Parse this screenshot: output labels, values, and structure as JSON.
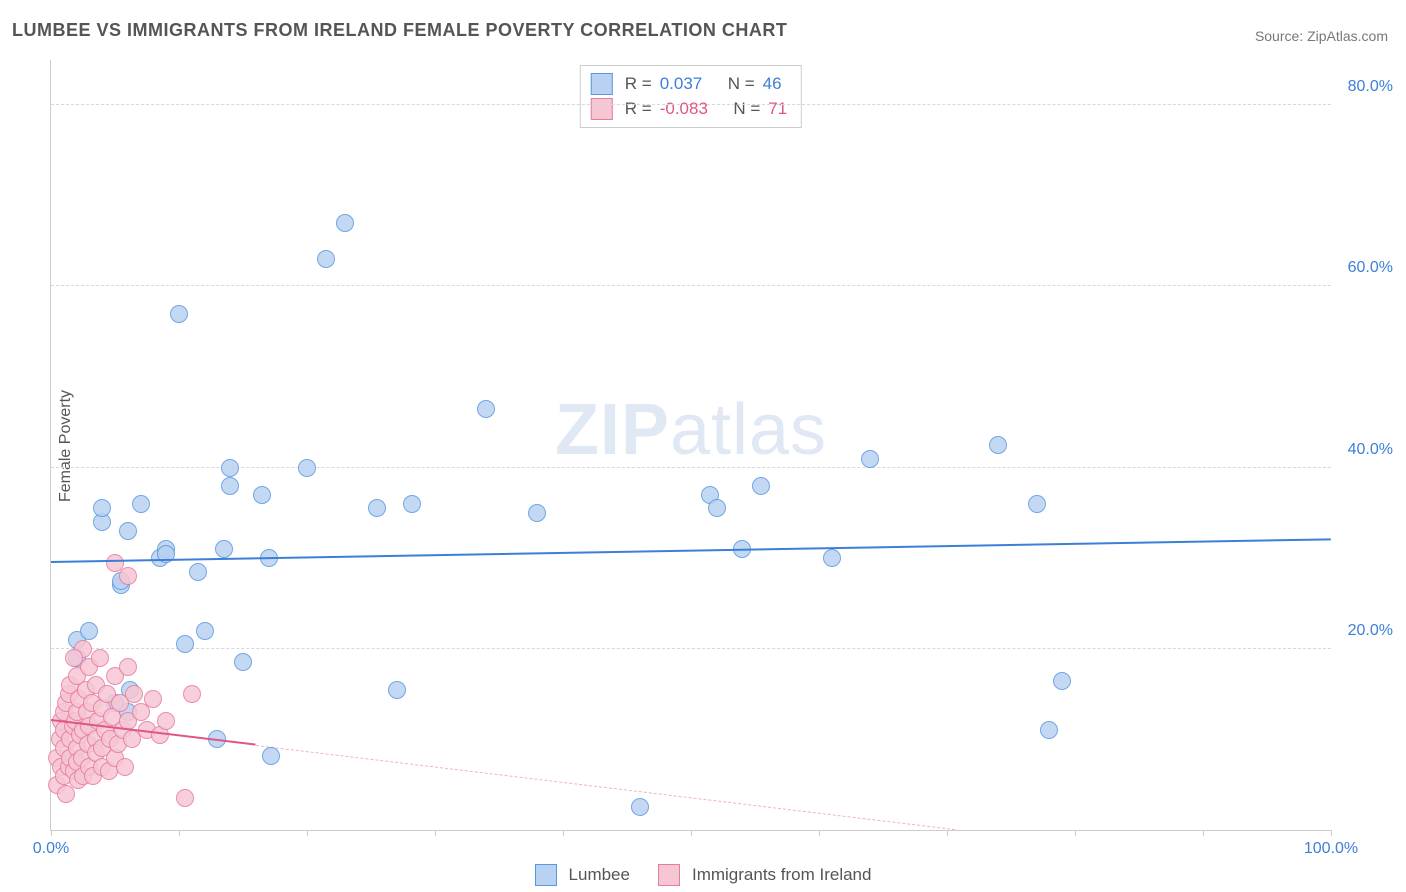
{
  "title": "LUMBEE VS IMMIGRANTS FROM IRELAND FEMALE POVERTY CORRELATION CHART",
  "source": "Source: ZipAtlas.com",
  "ylabel": "Female Poverty",
  "watermark_bold": "ZIP",
  "watermark_light": "atlas",
  "chart": {
    "type": "scatter",
    "xlim": [
      0,
      100
    ],
    "ylim": [
      0,
      85
    ],
    "xticks": [
      0,
      10,
      20,
      30,
      40,
      50,
      60,
      70,
      80,
      90,
      100
    ],
    "xtick_labels_shown": {
      "0": "0.0%",
      "100": "100.0%"
    },
    "yticks": [
      20,
      40,
      60,
      80
    ],
    "ytick_labels": {
      "20": "20.0%",
      "40": "40.0%",
      "60": "60.0%",
      "80": "80.0%"
    },
    "y_label_color": "#3d7fd6",
    "x_label_color": "#3d7fd6",
    "grid_color": "#d8d8d8",
    "background_color": "#ffffff",
    "marker_radius": 9,
    "marker_border_width": 1.5,
    "series": [
      {
        "name": "Lumbee",
        "fill": "#b9d2f1",
        "stroke": "#5a97de",
        "stat_value_color": "#3d7fd6",
        "R": "0.037",
        "N": "46",
        "trend": {
          "y_at_x0": 29.5,
          "y_at_x100": 32.0,
          "solid_to_x": 100,
          "color": "#3d7fd6",
          "width": 2.5
        },
        "points": [
          [
            2,
            19
          ],
          [
            2,
            21
          ],
          [
            3,
            22
          ],
          [
            4,
            34
          ],
          [
            4,
            35.5
          ],
          [
            5,
            14
          ],
          [
            5.5,
            27
          ],
          [
            5.5,
            27.5
          ],
          [
            6,
            33
          ],
          [
            6,
            13
          ],
          [
            6.2,
            15.5
          ],
          [
            7,
            36
          ],
          [
            8.5,
            30
          ],
          [
            9,
            31
          ],
          [
            9,
            30.5
          ],
          [
            10,
            57
          ],
          [
            10.5,
            20.5
          ],
          [
            11.5,
            28.5
          ],
          [
            12,
            22
          ],
          [
            13,
            10
          ],
          [
            13.5,
            31
          ],
          [
            14,
            40
          ],
          [
            14,
            38
          ],
          [
            15,
            18.5
          ],
          [
            16.5,
            37
          ],
          [
            17,
            30
          ],
          [
            20,
            40
          ],
          [
            21.5,
            63
          ],
          [
            23,
            67
          ],
          [
            25.5,
            35.5
          ],
          [
            27,
            15.5
          ],
          [
            28.2,
            36
          ],
          [
            34,
            46.5
          ],
          [
            38,
            35
          ],
          [
            46,
            2.5
          ],
          [
            51.5,
            37
          ],
          [
            52,
            35.5
          ],
          [
            54,
            31
          ],
          [
            55.5,
            38
          ],
          [
            61,
            30
          ],
          [
            64,
            41
          ],
          [
            74,
            42.5
          ],
          [
            77,
            36
          ],
          [
            78,
            11
          ],
          [
            79,
            16.5
          ],
          [
            17.2,
            8.2
          ]
        ]
      },
      {
        "name": "Immigrants from Ireland",
        "fill": "#f6c6d3",
        "stroke": "#e77ba0",
        "stat_value_color": "#e05588",
        "R": "-0.083",
        "N": "71",
        "trend": {
          "y_at_x0": 12.0,
          "y_at_x100": -5.0,
          "solid_to_x": 16,
          "color": "#e05588",
          "width": 2.5
        },
        "points": [
          [
            0.5,
            5
          ],
          [
            0.5,
            8
          ],
          [
            0.7,
            10
          ],
          [
            0.8,
            12
          ],
          [
            0.8,
            7
          ],
          [
            1,
            6
          ],
          [
            1,
            9
          ],
          [
            1,
            11
          ],
          [
            1,
            13
          ],
          [
            1.2,
            14
          ],
          [
            1.2,
            4
          ],
          [
            1.4,
            15
          ],
          [
            1.4,
            7
          ],
          [
            1.5,
            16
          ],
          [
            1.5,
            8
          ],
          [
            1.5,
            10
          ],
          [
            1.7,
            11.5
          ],
          [
            1.8,
            6.5
          ],
          [
            1.9,
            12
          ],
          [
            2,
            9
          ],
          [
            2,
            13
          ],
          [
            2,
            17
          ],
          [
            2,
            7.5
          ],
          [
            2.1,
            5.5
          ],
          [
            2.2,
            14.5
          ],
          [
            2.3,
            10.5
          ],
          [
            2.4,
            8
          ],
          [
            2.5,
            11
          ],
          [
            2.5,
            6
          ],
          [
            2.7,
            15.5
          ],
          [
            2.8,
            13
          ],
          [
            2.9,
            9.5
          ],
          [
            3,
            18
          ],
          [
            3,
            7
          ],
          [
            3,
            11.5
          ],
          [
            3.2,
            14
          ],
          [
            3.3,
            6
          ],
          [
            3.5,
            16
          ],
          [
            3.5,
            10
          ],
          [
            3.5,
            8.5
          ],
          [
            3.7,
            12
          ],
          [
            3.8,
            19
          ],
          [
            4,
            9
          ],
          [
            4,
            13.5
          ],
          [
            4,
            7
          ],
          [
            4.2,
            11
          ],
          [
            4.4,
            15
          ],
          [
            4.5,
            6.5
          ],
          [
            4.6,
            10
          ],
          [
            4.8,
            12.5
          ],
          [
            5,
            8
          ],
          [
            5,
            17
          ],
          [
            5.2,
            9.5
          ],
          [
            5.4,
            14
          ],
          [
            5.6,
            11
          ],
          [
            5.8,
            7
          ],
          [
            6,
            12
          ],
          [
            6,
            18
          ],
          [
            6.3,
            10
          ],
          [
            6.5,
            15
          ],
          [
            7,
            13
          ],
          [
            7.5,
            11
          ],
          [
            8,
            14.5
          ],
          [
            8.5,
            10.5
          ],
          [
            9,
            12
          ],
          [
            10.5,
            3.5
          ],
          [
            11,
            15
          ],
          [
            5,
            29.5
          ],
          [
            6,
            28
          ],
          [
            2.5,
            20
          ],
          [
            1.8,
            19
          ]
        ]
      }
    ]
  },
  "legend": {
    "series1_label": "Lumbee",
    "series2_label": "Immigrants from Ireland"
  },
  "stats_box": {
    "R_label": "R =",
    "N_label": "N ="
  }
}
